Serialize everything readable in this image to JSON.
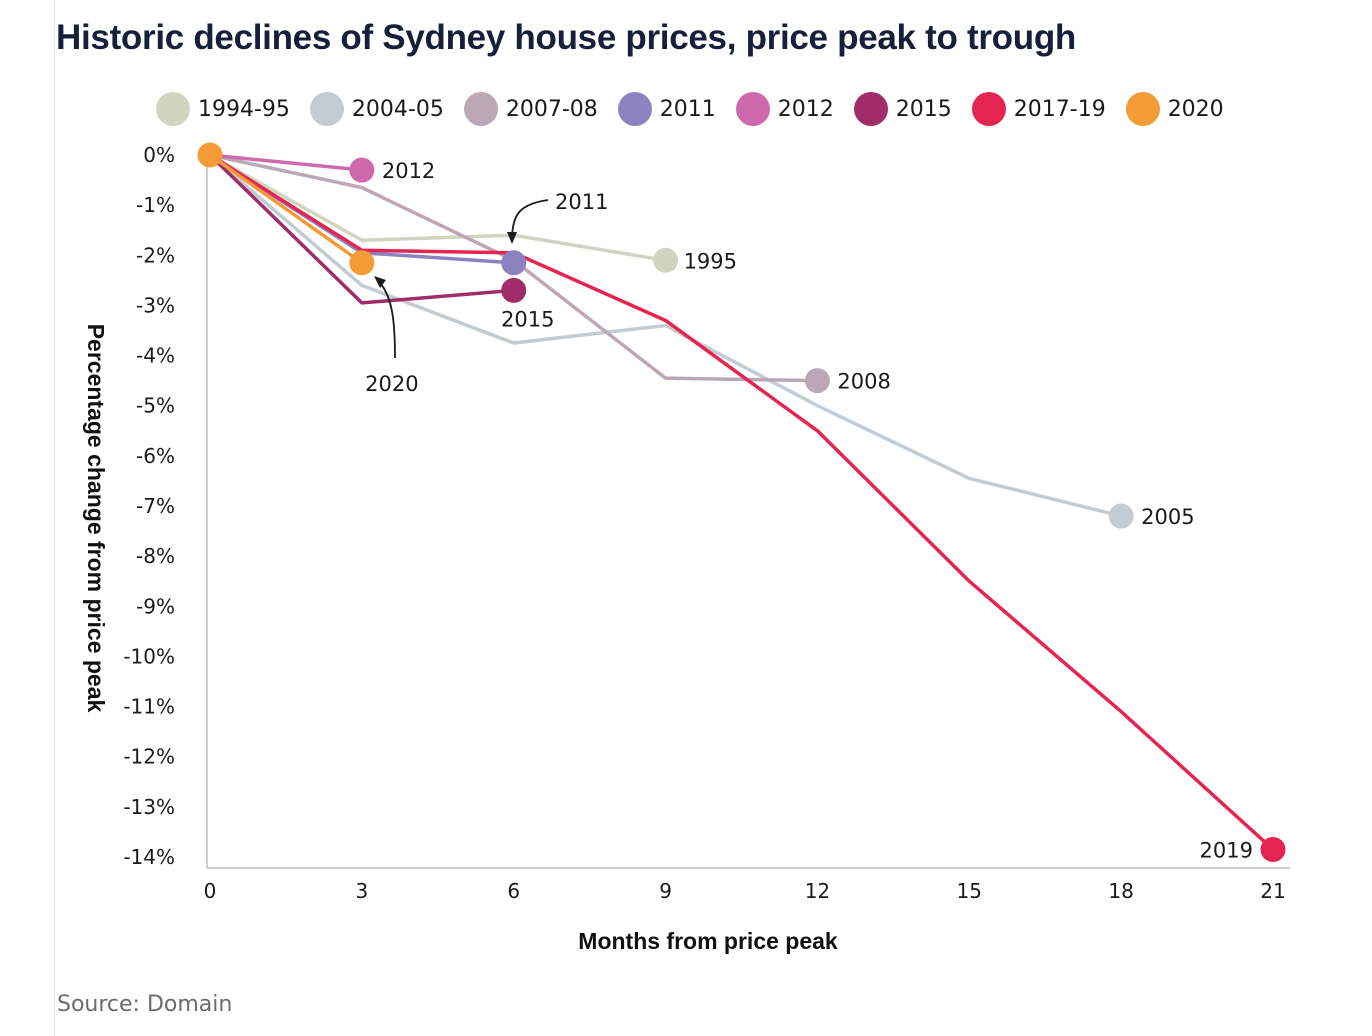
{
  "title": "Historic declines of Sydney house prices, price peak to trough",
  "source": "Source: Domain",
  "chart_data": {
    "type": "line",
    "title": "Historic declines of Sydney house prices, price peak to trough",
    "xlabel": "Months from price peak",
    "ylabel": "Percentage change from price peak",
    "xlim": [
      0,
      21
    ],
    "ylim": [
      -14,
      0
    ],
    "xticks": [
      0,
      3,
      6,
      9,
      12,
      15,
      18,
      21
    ],
    "yticks": [
      0,
      -1,
      -2,
      -3,
      -4,
      -5,
      -6,
      -7,
      -8,
      -9,
      -10,
      -11,
      -12,
      -13,
      -14
    ],
    "ytick_labels": [
      "0%",
      "-1%",
      "-2%",
      "-3%",
      "-4%",
      "-5%",
      "-6%",
      "-7%",
      "-8%",
      "-9%",
      "-10%",
      "-11%",
      "-12%",
      "-13%",
      "-14%"
    ],
    "grid": false,
    "legend_position": "top",
    "series": [
      {
        "name": "1994-95",
        "color": "#d1d4bf",
        "end_label": "1995",
        "x": [
          0,
          3,
          6,
          9
        ],
        "y": [
          0,
          -1.7,
          -1.6,
          -2.1
        ]
      },
      {
        "name": "2004-05",
        "color": "#c3cbd3",
        "end_label": "2005",
        "x": [
          0,
          3,
          6,
          9,
          12,
          15,
          18
        ],
        "y": [
          0,
          -2.6,
          -3.75,
          -3.4,
          -5.0,
          -6.45,
          -7.2
        ]
      },
      {
        "name": "2007-08",
        "color": "#bba7b5",
        "end_label": "2008",
        "x": [
          0,
          3,
          6,
          9,
          12
        ],
        "y": [
          0,
          -0.65,
          -2.1,
          -4.45,
          -4.5
        ]
      },
      {
        "name": "2011",
        "color": "#8c82c0",
        "end_label": "2011",
        "x": [
          0,
          3,
          6
        ],
        "y": [
          0,
          -1.95,
          -2.15
        ]
      },
      {
        "name": "2012",
        "color": "#cf69ae",
        "end_label": "2012",
        "x": [
          0,
          3
        ],
        "y": [
          0,
          -0.3
        ]
      },
      {
        "name": "2015",
        "color": "#a12c6a",
        "end_label": "2015",
        "x": [
          0,
          3,
          6
        ],
        "y": [
          0,
          -2.95,
          -2.7
        ]
      },
      {
        "name": "2017-19",
        "color": "#e52452",
        "end_label": "2019",
        "x": [
          0,
          3,
          6,
          9,
          12,
          15,
          18,
          21
        ],
        "y": [
          0,
          -1.9,
          -1.95,
          -3.3,
          -5.5,
          -8.5,
          -11.1,
          -13.85
        ]
      },
      {
        "name": "2020",
        "color": "#f39c37",
        "end_label": "2020",
        "x": [
          0,
          3
        ],
        "y": [
          0,
          -2.15
        ]
      }
    ]
  }
}
